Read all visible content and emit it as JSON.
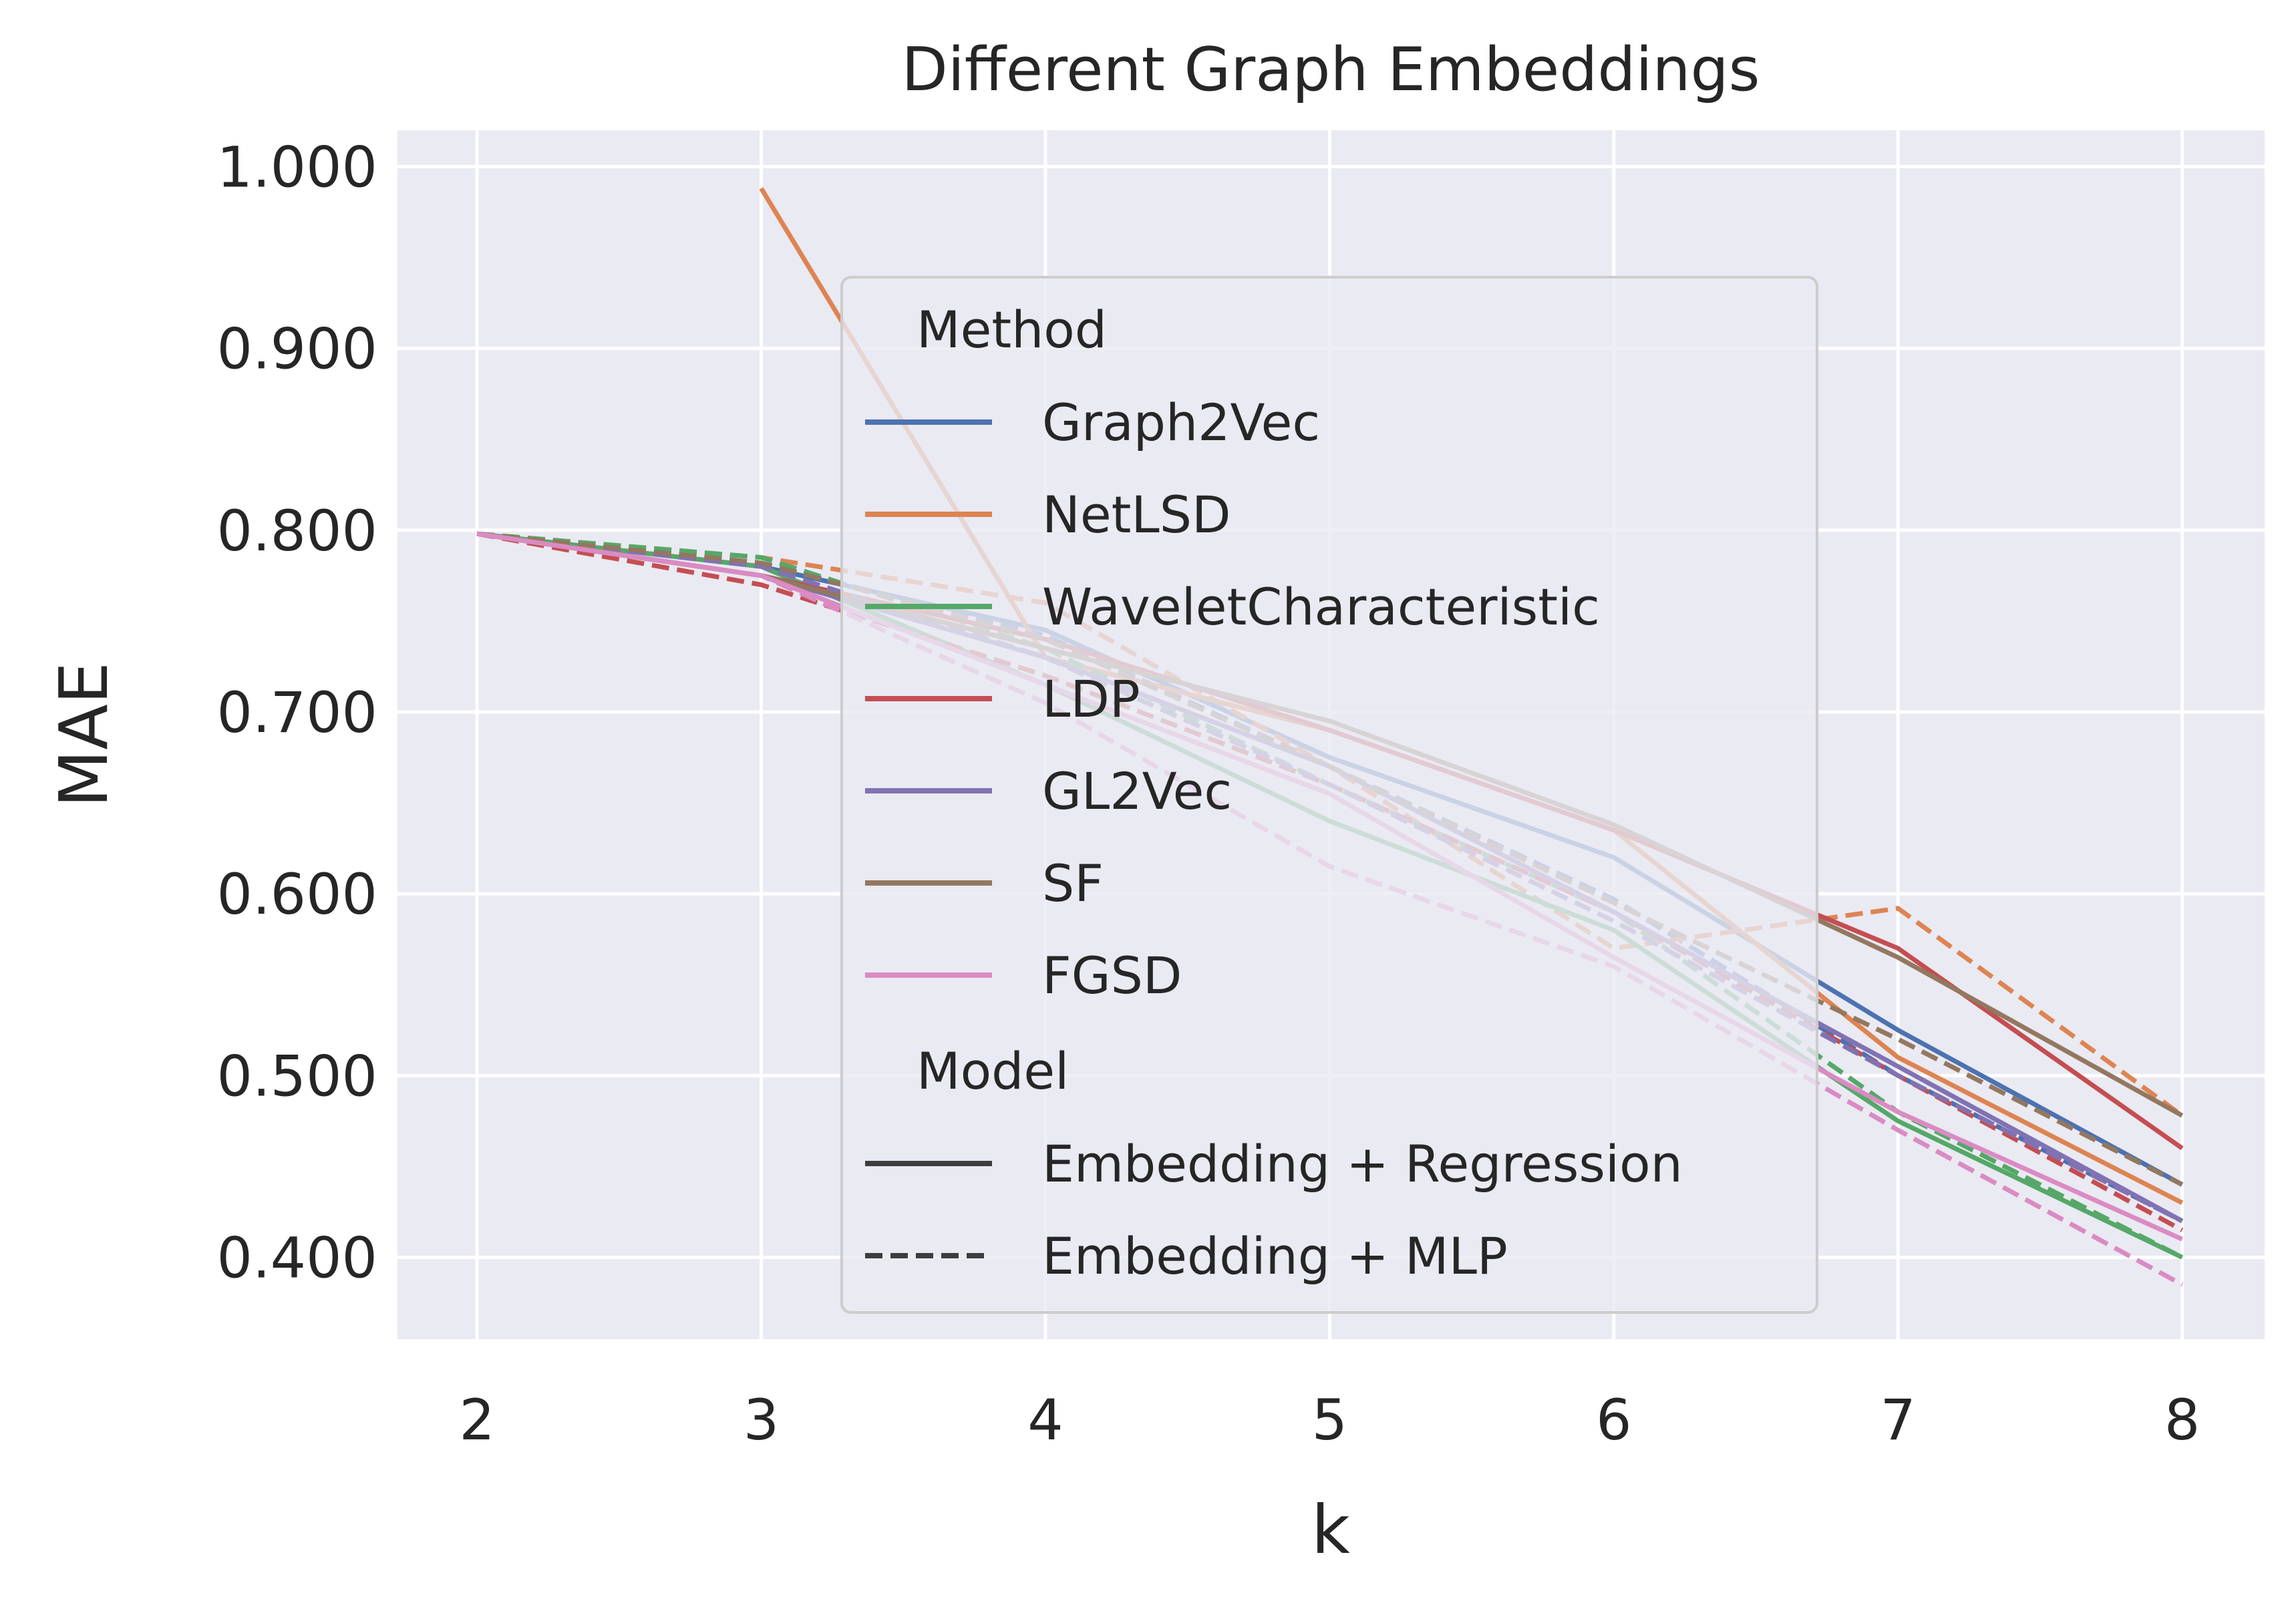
{
  "chart_data": {
    "type": "line",
    "title": "Different Graph Embeddings",
    "xlabel": "k",
    "ylabel": "MAE",
    "x": [
      2,
      3,
      4,
      5,
      6,
      7,
      8
    ],
    "x_tick_labels": [
      "2",
      "3",
      "4",
      "5",
      "6",
      "7",
      "8"
    ],
    "xlim": [
      1.72,
      8.29
    ],
    "ylim": [
      0.355,
      1.02
    ],
    "y_ticks": [
      0.4,
      0.5,
      0.6,
      0.7,
      0.8,
      0.9,
      1.0
    ],
    "y_tick_labels": [
      "0.400",
      "0.500",
      "0.600",
      "0.700",
      "0.800",
      "0.900",
      "1.000"
    ],
    "grid": true,
    "legend_position": "upper-center",
    "legend": {
      "method_title": "Method",
      "model_title": "Model",
      "methods": [
        {
          "name": "Graph2Vec",
          "color": "#4c72b0"
        },
        {
          "name": "NetLSD",
          "color": "#dd8452"
        },
        {
          "name": "WaveletCharacteristic",
          "color": "#55a868"
        },
        {
          "name": "LDP",
          "color": "#c44e52"
        },
        {
          "name": "GL2Vec",
          "color": "#8172b3"
        },
        {
          "name": "SF",
          "color": "#937860"
        },
        {
          "name": "FGSD",
          "color": "#da8bc3"
        }
      ],
      "models": [
        {
          "name": "Embedding + Regression",
          "style": "solid"
        },
        {
          "name": "Embedding + MLP",
          "style": "dashed"
        }
      ]
    },
    "series": [
      {
        "name": "Graph2Vec",
        "model": "Embedding + Regression",
        "color": "#4c72b0",
        "style": "solid",
        "values": [
          0.798,
          0.78,
          0.745,
          0.675,
          0.62,
          0.525,
          0.44
        ]
      },
      {
        "name": "Graph2Vec",
        "model": "Embedding + MLP",
        "color": "#4c72b0",
        "style": "dashed",
        "values": [
          0.798,
          0.782,
          0.742,
          0.67,
          0.597,
          0.5,
          0.42
        ]
      },
      {
        "name": "NetLSD",
        "model": "Embedding + Regression",
        "color": "#dd8452",
        "style": "solid",
        "values": [
          null,
          0.988,
          0.73,
          0.69,
          0.635,
          0.51,
          0.43
        ]
      },
      {
        "name": "NetLSD",
        "model": "Embedding + MLP",
        "color": "#dd8452",
        "style": "dashed",
        "values": [
          0.798,
          0.785,
          0.76,
          0.67,
          0.57,
          0.592,
          0.478
        ]
      },
      {
        "name": "WaveletCharacteristic",
        "model": "Embedding + Regression",
        "color": "#55a868",
        "style": "solid",
        "values": [
          0.798,
          0.78,
          0.715,
          0.64,
          0.58,
          0.475,
          0.4
        ]
      },
      {
        "name": "WaveletCharacteristic",
        "model": "Embedding + MLP",
        "color": "#55a868",
        "style": "dashed",
        "values": [
          0.798,
          0.785,
          0.735,
          0.66,
          0.59,
          0.48,
          0.4
        ]
      },
      {
        "name": "LDP",
        "model": "Embedding + Regression",
        "color": "#c44e52",
        "style": "solid",
        "values": [
          0.798,
          0.775,
          0.74,
          0.69,
          0.635,
          0.57,
          0.46
        ]
      },
      {
        "name": "LDP",
        "model": "Embedding + MLP",
        "color": "#c44e52",
        "style": "dashed",
        "values": [
          0.798,
          0.77,
          0.72,
          0.66,
          0.59,
          0.5,
          0.415
        ]
      },
      {
        "name": "GL2Vec",
        "model": "Embedding + Regression",
        "color": "#8172b3",
        "style": "solid",
        "values": [
          0.798,
          0.775,
          0.73,
          0.67,
          0.59,
          0.505,
          0.42
        ]
      },
      {
        "name": "GL2Vec",
        "model": "Embedding + MLP",
        "color": "#8172b3",
        "style": "dashed",
        "values": [
          0.798,
          0.78,
          0.73,
          0.66,
          0.585,
          0.5,
          0.42
        ]
      },
      {
        "name": "SF",
        "model": "Embedding + Regression",
        "color": "#937860",
        "style": "solid",
        "values": [
          0.798,
          0.775,
          0.735,
          0.695,
          0.638,
          0.565,
          0.478
        ]
      },
      {
        "name": "SF",
        "model": "Embedding + MLP",
        "color": "#937860",
        "style": "dashed",
        "values": [
          0.798,
          0.782,
          0.74,
          0.67,
          0.595,
          0.52,
          0.44
        ]
      },
      {
        "name": "FGSD",
        "model": "Embedding + Regression",
        "color": "#da8bc3",
        "style": "solid",
        "values": [
          0.798,
          0.775,
          0.715,
          0.655,
          0.565,
          0.48,
          0.41
        ]
      },
      {
        "name": "FGSD",
        "model": "Embedding + MLP",
        "color": "#da8bc3",
        "style": "dashed",
        "values": [
          0.798,
          0.775,
          0.705,
          0.615,
          0.56,
          0.47,
          0.385
        ]
      }
    ]
  }
}
